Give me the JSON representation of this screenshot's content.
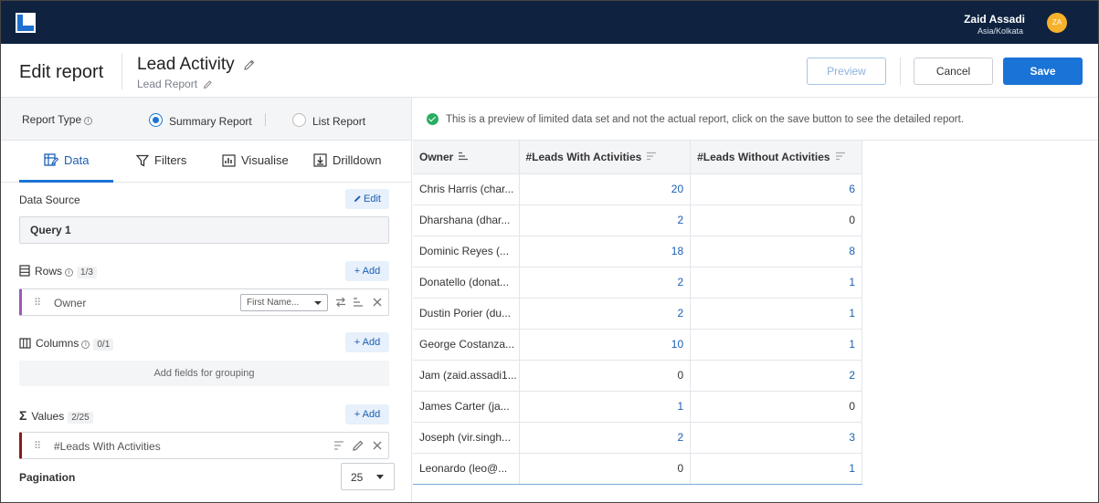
{
  "topbar": {
    "user_name": "Zaid Assadi",
    "timezone": "Asia/Kolkata",
    "avatar_initials": "ZA"
  },
  "header": {
    "page_title": "Edit report",
    "report_name": "Lead Activity",
    "report_subtitle": "Lead Report",
    "preview_label": "Preview",
    "cancel_label": "Cancel",
    "save_label": "Save"
  },
  "report_type": {
    "label": "Report Type",
    "option_summary": "Summary Report",
    "option_list": "List Report",
    "selected": "Summary Report"
  },
  "tabs": [
    "Data",
    "Filters",
    "Visualise",
    "Drilldown"
  ],
  "data_source": {
    "label": "Data Source",
    "edit_label": "Edit",
    "value": "Query 1"
  },
  "rows": {
    "label": "Rows",
    "count": "1/3",
    "add_label": "+ Add",
    "field": "Owner",
    "format": "First Name..."
  },
  "columns": {
    "label": "Columns",
    "count": "0/1",
    "add_label": "+ Add",
    "placeholder": "Add fields for grouping"
  },
  "values": {
    "label": "Values",
    "count": "2/25",
    "add_label": "+ Add",
    "field": "#Leads With Activities"
  },
  "pagination": {
    "label": "Pagination",
    "value": "25"
  },
  "banner": {
    "text": "This is a preview of limited data set and not the actual report, click on the save button to see the detailed report."
  },
  "table": {
    "headers": [
      "Owner",
      "#Leads With Activities",
      "#Leads Without Activities"
    ],
    "rows": [
      [
        "Chris Harris (char...",
        "20",
        "6"
      ],
      [
        "Dharshana (dhar...",
        "2",
        "0"
      ],
      [
        "Dominic Reyes (...",
        "18",
        "8"
      ],
      [
        "Donatello (donat...",
        "2",
        "1"
      ],
      [
        "Dustin Porier (du...",
        "2",
        "1"
      ],
      [
        "George Costanza...",
        "10",
        "1"
      ],
      [
        "Jam (zaid.assadi1...",
        "0",
        "2"
      ],
      [
        "James Carter (ja...",
        "1",
        "0"
      ],
      [
        "Joseph (vir.singh...",
        "2",
        "3"
      ],
      [
        "Leonardo (leo@...",
        "0",
        "1"
      ]
    ]
  }
}
